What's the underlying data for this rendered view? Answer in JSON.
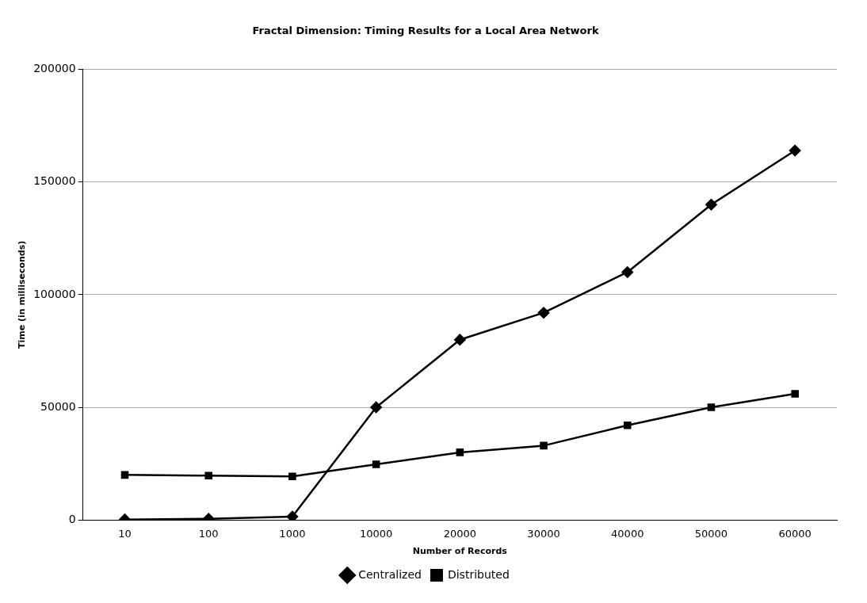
{
  "chart_data": {
    "type": "line",
    "title": "Fractal Dimension: Timing Results for a Local Area Network",
    "xlabel": "Number of Records",
    "ylabel": "Time (in milliseconds)",
    "categories": [
      "10",
      "100",
      "1000",
      "10000",
      "20000",
      "30000",
      "40000",
      "50000",
      "60000"
    ],
    "series": [
      {
        "name": "Centralized",
        "color": "#000000",
        "marker": "diamond",
        "values": [
          200,
          500,
          1500,
          50000,
          80000,
          92000,
          110000,
          140000,
          164000
        ]
      },
      {
        "name": "Distributed",
        "color": "#000000",
        "marker": "square",
        "values": [
          20000,
          19700,
          19300,
          24700,
          30000,
          33000,
          42000,
          50000,
          56000
        ]
      }
    ],
    "ylim": [
      0,
      200000
    ],
    "yticks": [
      0,
      50000,
      100000,
      150000,
      200000
    ],
    "grid": "y",
    "legend": "bottom",
    "line_style": "solid"
  }
}
